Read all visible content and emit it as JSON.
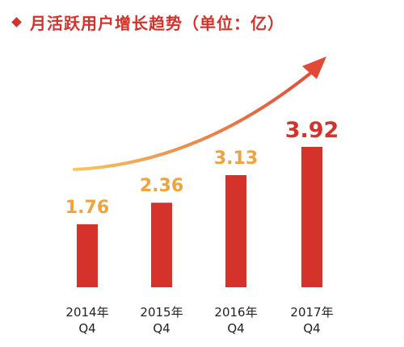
{
  "header": {
    "title": "月活跃用户增长趋势（单位：亿）"
  },
  "colors": {
    "accent": "#d6322c",
    "bar": "#d6322c",
    "label_normal": "#f0a23c",
    "label_highlight": "#d6322c",
    "arrow_start": "#f7c860",
    "arrow_end": "#e24a36"
  },
  "chart_data": {
    "type": "bar",
    "title": "月活跃用户增长趋势（单位：亿）",
    "categories": [
      [
        "2014年",
        "Q4"
      ],
      [
        "2015年",
        "Q4"
      ],
      [
        "2016年",
        "Q4"
      ],
      [
        "2017年",
        "Q4"
      ]
    ],
    "values": [
      1.76,
      2.36,
      3.13,
      3.92
    ],
    "data_labels": [
      "1.76",
      "2.36",
      "3.13",
      "3.92"
    ],
    "highlight_index": 3,
    "unit": "亿",
    "ylim": [
      0,
      4
    ],
    "grid": false,
    "legend": "none",
    "trend_arrow": true
  }
}
